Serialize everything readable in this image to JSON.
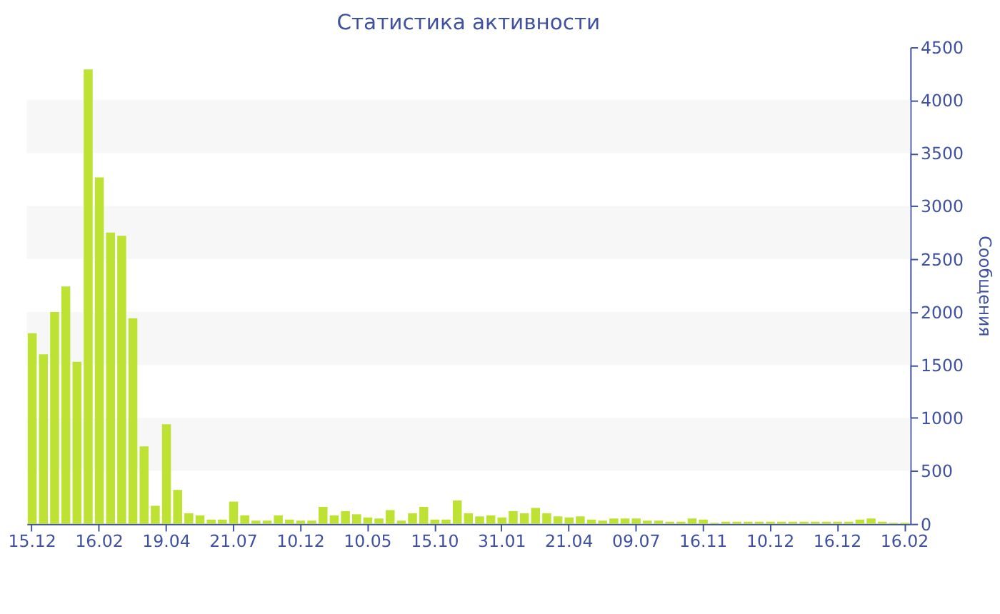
{
  "chart_data": {
    "type": "bar",
    "title": "Статистика активности",
    "ylabel": "Сообщения",
    "categories": [
      "15.12",
      null,
      null,
      null,
      null,
      null,
      "16.02",
      null,
      null,
      null,
      null,
      null,
      "19.04",
      null,
      null,
      null,
      null,
      null,
      "21.07",
      null,
      null,
      null,
      null,
      null,
      "10.12",
      null,
      null,
      null,
      null,
      null,
      "10.05",
      null,
      null,
      null,
      null,
      null,
      "15.10",
      null,
      null,
      null,
      null,
      null,
      "31.01",
      null,
      null,
      null,
      null,
      null,
      "21.04",
      null,
      null,
      null,
      null,
      null,
      "09.07",
      null,
      null,
      null,
      null,
      null,
      "16.11",
      null,
      null,
      null,
      null,
      null,
      "10.12",
      null,
      null,
      null,
      null,
      null,
      "16.12",
      null,
      null,
      null,
      null,
      null,
      "16.02"
    ],
    "values": [
      1800,
      1600,
      2000,
      2240,
      1530,
      4290,
      3270,
      2750,
      2720,
      1940,
      730,
      170,
      940,
      320,
      100,
      80,
      40,
      40,
      210,
      80,
      30,
      30,
      80,
      40,
      30,
      30,
      160,
      80,
      120,
      90,
      60,
      50,
      130,
      30,
      100,
      160,
      40,
      40,
      220,
      100,
      70,
      80,
      60,
      120,
      100,
      150,
      100,
      70,
      60,
      70,
      40,
      30,
      50,
      50,
      50,
      30,
      30,
      20,
      20,
      50,
      40,
      10,
      20,
      20,
      20,
      20,
      20,
      20,
      20,
      20,
      20,
      20,
      20,
      20,
      40,
      50,
      20,
      10,
      10
    ],
    "color": "#bde234",
    "ylim": [
      0,
      4500
    ],
    "yticks": [
      0,
      500,
      1000,
      1500,
      2000,
      2500,
      3000,
      3500,
      4000,
      4500
    ],
    "bands": [
      {
        "axis": "y",
        "from": 500,
        "to": 1000,
        "color": "#f7f7f7"
      },
      {
        "axis": "y",
        "from": 1500,
        "to": 2000,
        "color": "#f7f7f7"
      },
      {
        "axis": "y",
        "from": 2500,
        "to": 3000,
        "color": "#f7f7f7"
      },
      {
        "axis": "y",
        "from": 3500,
        "to": 4000,
        "color": "#f7f7f7"
      }
    ]
  }
}
